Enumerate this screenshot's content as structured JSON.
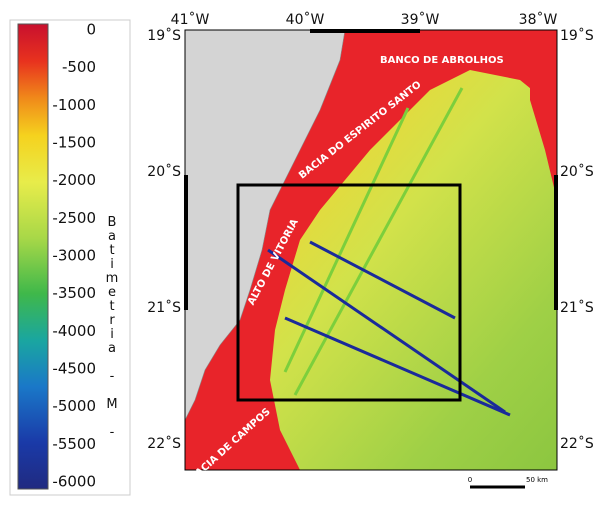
{
  "colorbar": {
    "ticks": [
      "0",
      "-500",
      "-1000",
      "-1500",
      "-2000",
      "-2500",
      "-3000",
      "-3500",
      "-4000",
      "-4500",
      "-5000",
      "-5500",
      "-6000"
    ],
    "label": "Batimetria - M -"
  },
  "map": {
    "longitudes": [
      "41˚W",
      "40˚W",
      "39˚W",
      "38˚W"
    ],
    "latitudes": [
      "19˚S",
      "20˚S",
      "21˚S",
      "22˚S"
    ],
    "places": [
      "BANCO DE ABROLHOS",
      "BACIA DO ESPIRITO SANTO",
      "ALTO DE VITORIA",
      "BACIA DE CAMPOS"
    ],
    "scale": [
      "0",
      "50 km"
    ]
  }
}
